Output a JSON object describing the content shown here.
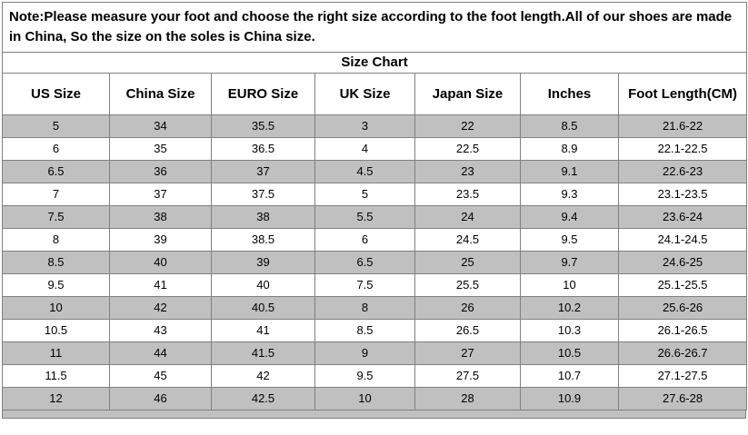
{
  "note": "Note:Please measure your foot and choose the right size according to the foot length.All of our shoes are made in China, So the size on the soles is China size.",
  "title": "Size Chart",
  "table": {
    "headers": [
      "US Size",
      "China Size",
      "EURO Size",
      "UK Size",
      "Japan Size",
      "Inches",
      "Foot Length(CM)"
    ],
    "rows": [
      [
        "5",
        "34",
        "35.5",
        "3",
        "22",
        "8.5",
        "21.6-22"
      ],
      [
        "6",
        "35",
        "36.5",
        "4",
        "22.5",
        "8.9",
        "22.1-22.5"
      ],
      [
        "6.5",
        "36",
        "37",
        "4.5",
        "23",
        "9.1",
        "22.6-23"
      ],
      [
        "7",
        "37",
        "37.5",
        "5",
        "23.5",
        "9.3",
        "23.1-23.5"
      ],
      [
        "7.5",
        "38",
        "38",
        "5.5",
        "24",
        "9.4",
        "23.6-24"
      ],
      [
        "8",
        "39",
        "38.5",
        "6",
        "24.5",
        "9.5",
        "24.1-24.5"
      ],
      [
        "8.5",
        "40",
        "39",
        "6.5",
        "25",
        "9.7",
        "24.6-25"
      ],
      [
        "9.5",
        "41",
        "40",
        "7.5",
        "25.5",
        "10",
        "25.1-25.5"
      ],
      [
        "10",
        "42",
        "40.5",
        "8",
        "26",
        "10.2",
        "25.6-26"
      ],
      [
        "10.5",
        "43",
        "41",
        "8.5",
        "26.5",
        "10.3",
        "26.1-26.5"
      ],
      [
        "11",
        "44",
        "41.5",
        "9",
        "27",
        "10.5",
        "26.6-26.7"
      ],
      [
        "11.5",
        "45",
        "42",
        "9.5",
        "27.5",
        "10.7",
        "27.1-27.5"
      ],
      [
        "12",
        "46",
        "42.5",
        "10",
        "28",
        "10.9",
        "27.6-28"
      ]
    ]
  },
  "colors": {
    "row_shaded": "#c0c0c0",
    "row_plain": "#ffffff",
    "border": "#808080",
    "text": "#000000",
    "background": "#ffffff"
  }
}
